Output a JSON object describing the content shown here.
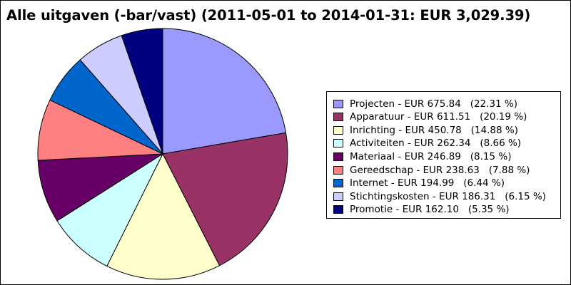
{
  "chart_data": {
    "type": "pie",
    "title": "Alle uitgaven (-bar/vast) (2011-05-01 to 2014-01-31: EUR 3,029.39)",
    "currency": "EUR",
    "slices": [
      {
        "name": "Projecten",
        "value": 675.84,
        "percent": 22.31,
        "color": "#9999ff",
        "label": "Projecten - EUR 675.84   (22.31 %)"
      },
      {
        "name": "Apparatuur",
        "value": 611.51,
        "percent": 20.19,
        "color": "#993366",
        "label": "Apparatuur - EUR 611.51   (20.19 %)"
      },
      {
        "name": "Inrichting",
        "value": 450.78,
        "percent": 14.88,
        "color": "#ffffcc",
        "label": "Inrichting - EUR 450.78   (14.88 %)"
      },
      {
        "name": "Activiteiten",
        "value": 262.34,
        "percent": 8.66,
        "color": "#ccffff",
        "label": "Activiteiten - EUR 262.34   (8.66 %)"
      },
      {
        "name": "Materiaal",
        "value": 246.89,
        "percent": 8.15,
        "color": "#660066",
        "label": "Materiaal - EUR 246.89   (8.15 %)"
      },
      {
        "name": "Gereedschap",
        "value": 238.63,
        "percent": 7.88,
        "color": "#ff8080",
        "label": "Gereedschap - EUR 238.63   (7.88 %)"
      },
      {
        "name": "Internet",
        "value": 194.99,
        "percent": 6.44,
        "color": "#0066cc",
        "label": "Internet - EUR 194.99   (6.44 %)"
      },
      {
        "name": "Stichtingskosten",
        "value": 186.31,
        "percent": 6.15,
        "color": "#ccccff",
        "label": "Stichtingskosten - EUR 186.31   (6.15 %)"
      },
      {
        "name": "Promotie",
        "value": 162.1,
        "percent": 5.35,
        "color": "#000080",
        "label": "Promotie - EUR 162.10   (5.35 %)"
      }
    ],
    "legend_position": "right"
  }
}
